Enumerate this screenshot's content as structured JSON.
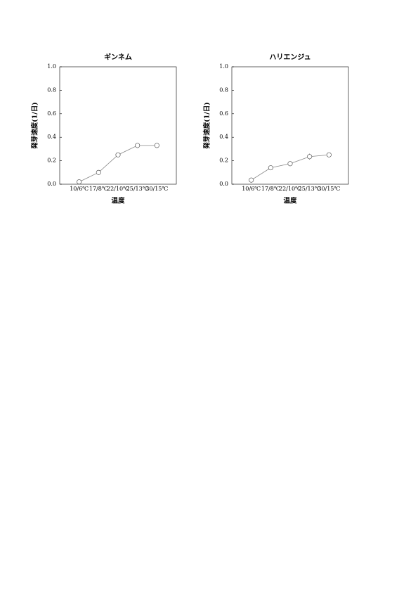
{
  "chart_data": [
    {
      "type": "line",
      "title": "ギンネム",
      "xlabel": "温度",
      "ylabel": "発芽速度(1/日)",
      "categories": [
        "10/6℃",
        "17/8℃",
        "22/10℃",
        "25/13℃",
        "30/15℃"
      ],
      "values": [
        0.02,
        0.1,
        0.25,
        0.33,
        0.33
      ],
      "errors": [
        0.02,
        0.02,
        0,
        0,
        0
      ],
      "color": "#888888",
      "ylim": [
        0,
        1
      ],
      "yticks": [
        {
          "value": 0,
          "label": "0.0"
        },
        {
          "value": 0.2,
          "label": "0.2"
        },
        {
          "value": 0.4,
          "label": "0.4"
        },
        {
          "value": 0.6,
          "label": "0.6"
        },
        {
          "value": 0.8,
          "label": "0.8"
        },
        {
          "value": 1,
          "label": "1.0"
        }
      ]
    },
    {
      "type": "line",
      "title": "ハリエンジュ",
      "xlabel": "温度",
      "ylabel": "発芽速度(1/日)",
      "categories": [
        "10/6℃",
        "17/8℃",
        "22/10℃",
        "25/13℃",
        "30/15℃"
      ],
      "values": [
        0.035,
        0.14,
        0.175,
        0.235,
        0.25
      ],
      "errors": [
        0.005,
        0.005,
        0.015,
        0.025,
        0.005
      ],
      "color": "#888888",
      "ylim": [
        0,
        1
      ],
      "yticks": [
        {
          "value": 0,
          "label": "0.0"
        },
        {
          "value": 0.2,
          "label": "0.2"
        },
        {
          "value": 0.4,
          "label": "0.4"
        },
        {
          "value": 0.6,
          "label": "0.6"
        },
        {
          "value": 0.8,
          "label": "0.8"
        },
        {
          "value": 1,
          "label": "1.0"
        }
      ]
    }
  ]
}
